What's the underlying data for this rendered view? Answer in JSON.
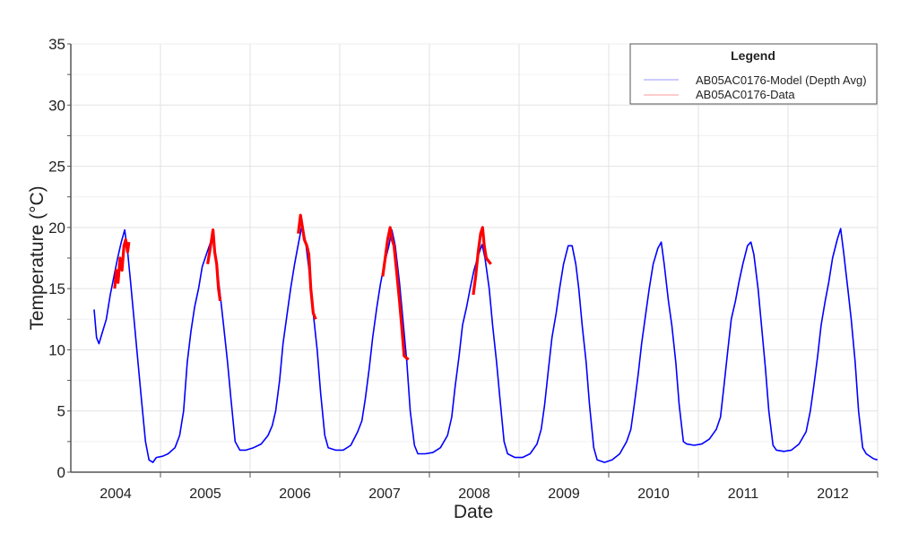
{
  "chart_data": {
    "type": "line",
    "title": "",
    "xlabel": "Date",
    "ylabel": "Temperature (°C)",
    "xlim": [
      "2004-01-01",
      "2013-01-01"
    ],
    "ylim": [
      0,
      35
    ],
    "x_tick_labels": [
      "2004",
      "2005",
      "2006",
      "2007",
      "2008",
      "2009",
      "2010",
      "2011",
      "2012"
    ],
    "y_ticks": [
      0,
      5,
      10,
      15,
      20,
      25,
      30,
      35
    ],
    "grid": true,
    "legend": {
      "title": "Legend",
      "position": "top-right"
    },
    "series": [
      {
        "name": "AB05AC0176-Model (Depth Avg)",
        "color": "#0000ff",
        "points": [
          [
            "2004-04-05",
            13.3
          ],
          [
            "2004-04-15",
            11
          ],
          [
            "2004-04-25",
            10.5
          ],
          [
            "2004-05-10",
            11.5
          ],
          [
            "2004-05-25",
            12.5
          ],
          [
            "2004-06-10",
            14.5
          ],
          [
            "2004-06-25",
            16
          ],
          [
            "2004-07-10",
            17.5
          ],
          [
            "2004-07-25",
            18.8
          ],
          [
            "2004-08-08",
            19.8
          ],
          [
            "2004-08-20",
            18
          ],
          [
            "2004-09-01",
            15.5
          ],
          [
            "2004-09-15",
            12.5
          ],
          [
            "2004-10-01",
            9
          ],
          [
            "2004-10-15",
            6
          ],
          [
            "2004-11-01",
            2.5
          ],
          [
            "2004-11-15",
            1.0
          ],
          [
            "2004-12-01",
            0.8
          ],
          [
            "2004-12-15",
            1.2
          ],
          [
            "2005-01-10",
            1.3
          ],
          [
            "2005-02-01",
            1.5
          ],
          [
            "2005-03-01",
            2.0
          ],
          [
            "2005-03-20",
            3.0
          ],
          [
            "2005-04-05",
            5
          ],
          [
            "2005-04-20",
            9
          ],
          [
            "2005-05-05",
            11.5
          ],
          [
            "2005-05-20",
            13.5
          ],
          [
            "2005-06-05",
            15
          ],
          [
            "2005-06-20",
            16.8
          ],
          [
            "2005-07-10",
            18
          ],
          [
            "2005-08-02",
            19.3
          ],
          [
            "2005-08-15",
            17.5
          ],
          [
            "2005-09-01",
            14.5
          ],
          [
            "2005-09-15",
            12
          ],
          [
            "2005-10-01",
            9
          ],
          [
            "2005-10-15",
            6
          ],
          [
            "2005-11-01",
            2.5
          ],
          [
            "2005-11-20",
            1.8
          ],
          [
            "2005-12-15",
            1.8
          ],
          [
            "2006-01-15",
            2.0
          ],
          [
            "2006-02-15",
            2.3
          ],
          [
            "2006-03-15",
            3.0
          ],
          [
            "2006-04-01",
            3.8
          ],
          [
            "2006-04-15",
            5
          ],
          [
            "2006-05-01",
            7.5
          ],
          [
            "2006-05-15",
            10.5
          ],
          [
            "2006-06-01",
            13
          ],
          [
            "2006-06-15",
            15
          ],
          [
            "2006-07-01",
            17
          ],
          [
            "2006-07-15",
            18.5
          ],
          [
            "2006-08-01",
            20.3
          ],
          [
            "2006-08-15",
            18.8
          ],
          [
            "2006-09-01",
            16
          ],
          [
            "2006-09-15",
            13
          ],
          [
            "2006-10-01",
            10
          ],
          [
            "2006-10-15",
            6.5
          ],
          [
            "2006-11-01",
            3
          ],
          [
            "2006-11-15",
            2.0
          ],
          [
            "2006-12-15",
            1.8
          ],
          [
            "2007-01-15",
            1.8
          ],
          [
            "2007-02-15",
            2.2
          ],
          [
            "2007-03-15",
            3.3
          ],
          [
            "2007-04-01",
            4.2
          ],
          [
            "2007-04-15",
            6
          ],
          [
            "2007-05-01",
            8.5
          ],
          [
            "2007-05-15",
            11
          ],
          [
            "2007-06-01",
            13.5
          ],
          [
            "2007-06-15",
            15.3
          ],
          [
            "2007-07-01",
            17
          ],
          [
            "2007-07-20",
            18.5
          ],
          [
            "2007-08-01",
            19.8
          ],
          [
            "2007-08-15",
            18.5
          ],
          [
            "2007-09-01",
            15.5
          ],
          [
            "2007-09-15",
            12.5
          ],
          [
            "2007-10-01",
            9
          ],
          [
            "2007-10-15",
            5
          ],
          [
            "2007-11-01",
            2.2
          ],
          [
            "2007-11-15",
            1.5
          ],
          [
            "2007-12-15",
            1.5
          ],
          [
            "2008-01-15",
            1.6
          ],
          [
            "2008-02-15",
            2.0
          ],
          [
            "2008-03-15",
            3.0
          ],
          [
            "2008-04-01",
            4.5
          ],
          [
            "2008-04-15",
            7
          ],
          [
            "2008-05-01",
            9.5
          ],
          [
            "2008-05-15",
            12
          ],
          [
            "2008-06-01",
            13.5
          ],
          [
            "2008-06-15",
            15
          ],
          [
            "2008-07-01",
            16.5
          ],
          [
            "2008-07-20",
            17.8
          ],
          [
            "2008-08-03",
            18.6
          ],
          [
            "2008-08-15",
            17.5
          ],
          [
            "2008-09-01",
            15
          ],
          [
            "2008-09-15",
            12
          ],
          [
            "2008-10-01",
            9
          ],
          [
            "2008-10-15",
            6
          ],
          [
            "2008-11-01",
            2.5
          ],
          [
            "2008-11-15",
            1.5
          ],
          [
            "2008-12-15",
            1.2
          ],
          [
            "2009-01-15",
            1.2
          ],
          [
            "2009-02-15",
            1.5
          ],
          [
            "2009-03-15",
            2.3
          ],
          [
            "2009-04-01",
            3.5
          ],
          [
            "2009-04-15",
            5.5
          ],
          [
            "2009-05-01",
            8.5
          ],
          [
            "2009-05-15",
            11
          ],
          [
            "2009-06-01",
            13
          ],
          [
            "2009-06-15",
            15
          ],
          [
            "2009-07-01",
            17
          ],
          [
            "2009-07-20",
            18.5
          ],
          [
            "2009-08-05",
            18.5
          ],
          [
            "2009-08-20",
            17
          ],
          [
            "2009-09-01",
            15
          ],
          [
            "2009-09-15",
            12
          ],
          [
            "2009-10-01",
            9
          ],
          [
            "2009-10-15",
            5.5
          ],
          [
            "2009-11-01",
            2
          ],
          [
            "2009-11-15",
            1.0
          ],
          [
            "2009-12-15",
            0.8
          ],
          [
            "2010-01-15",
            1.0
          ],
          [
            "2010-02-15",
            1.5
          ],
          [
            "2010-03-15",
            2.5
          ],
          [
            "2010-04-01",
            3.5
          ],
          [
            "2010-04-15",
            5.5
          ],
          [
            "2010-05-01",
            8
          ],
          [
            "2010-05-15",
            10.5
          ],
          [
            "2010-06-01",
            13
          ],
          [
            "2010-06-15",
            15
          ],
          [
            "2010-07-01",
            17
          ],
          [
            "2010-07-20",
            18.3
          ],
          [
            "2010-08-03",
            18.8
          ],
          [
            "2010-08-15",
            17
          ],
          [
            "2010-09-01",
            14
          ],
          [
            "2010-09-15",
            12
          ],
          [
            "2010-10-01",
            9
          ],
          [
            "2010-10-15",
            5.5
          ],
          [
            "2010-11-01",
            2.5
          ],
          [
            "2010-11-15",
            2.3
          ],
          [
            "2010-12-15",
            2.2
          ],
          [
            "2011-01-15",
            2.3
          ],
          [
            "2011-02-15",
            2.7
          ],
          [
            "2011-03-15",
            3.5
          ],
          [
            "2011-04-01",
            4.5
          ],
          [
            "2011-04-15",
            7
          ],
          [
            "2011-05-01",
            10
          ],
          [
            "2011-05-15",
            12.5
          ],
          [
            "2011-06-01",
            14
          ],
          [
            "2011-06-15",
            15.5
          ],
          [
            "2011-07-01",
            17
          ],
          [
            "2011-07-20",
            18.5
          ],
          [
            "2011-08-03",
            18.8
          ],
          [
            "2011-08-15",
            17.8
          ],
          [
            "2011-09-01",
            15
          ],
          [
            "2011-09-15",
            12
          ],
          [
            "2011-10-01",
            8.5
          ],
          [
            "2011-10-15",
            5
          ],
          [
            "2011-11-01",
            2.2
          ],
          [
            "2011-11-15",
            1.8
          ],
          [
            "2011-12-15",
            1.7
          ],
          [
            "2012-01-15",
            1.8
          ],
          [
            "2012-02-15",
            2.3
          ],
          [
            "2012-03-15",
            3.3
          ],
          [
            "2012-04-01",
            5
          ],
          [
            "2012-04-15",
            7
          ],
          [
            "2012-05-01",
            9.5
          ],
          [
            "2012-05-15",
            12
          ],
          [
            "2012-06-01",
            14
          ],
          [
            "2012-06-15",
            15.5
          ],
          [
            "2012-07-01",
            17.5
          ],
          [
            "2012-07-20",
            19
          ],
          [
            "2012-08-03",
            19.9
          ],
          [
            "2012-08-15",
            18
          ],
          [
            "2012-09-01",
            15
          ],
          [
            "2012-09-15",
            12.5
          ],
          [
            "2012-10-01",
            9
          ],
          [
            "2012-10-15",
            5
          ],
          [
            "2012-11-01",
            2
          ],
          [
            "2012-11-15",
            1.5
          ],
          [
            "2012-12-15",
            1.1
          ],
          [
            "2012-12-31",
            1.0
          ]
        ]
      },
      {
        "name": "AB05AC0176-Data",
        "color": "#ff0000",
        "segments": [
          [
            [
              "2004-06-28",
              15
            ],
            [
              "2004-07-05",
              16.5
            ],
            [
              "2004-07-12",
              15.5
            ],
            [
              "2004-07-20",
              17.5
            ],
            [
              "2004-07-28",
              16.5
            ],
            [
              "2004-08-05",
              18.5
            ],
            [
              "2004-08-12",
              19
            ],
            [
              "2004-08-20",
              18
            ],
            [
              "2004-08-25",
              18.8
            ]
          ],
          [
            [
              "2005-07-12",
              17
            ],
            [
              "2005-07-20",
              18
            ],
            [
              "2005-07-28",
              19
            ],
            [
              "2005-08-03",
              19.8
            ],
            [
              "2005-08-10",
              18
            ],
            [
              "2005-08-18",
              17
            ],
            [
              "2005-08-25",
              15
            ],
            [
              "2005-09-01",
              14
            ]
          ],
          [
            [
              "2006-07-16",
              19.5
            ],
            [
              "2006-07-25",
              21
            ],
            [
              "2006-08-02",
              20
            ],
            [
              "2006-08-10",
              19
            ],
            [
              "2006-08-20",
              18.5
            ],
            [
              "2006-08-28",
              17.8
            ],
            [
              "2006-09-05",
              15
            ],
            [
              "2006-09-15",
              13
            ],
            [
              "2006-09-25",
              12.5
            ]
          ],
          [
            [
              "2007-06-25",
              16
            ],
            [
              "2007-07-05",
              17.5
            ],
            [
              "2007-07-15",
              19
            ],
            [
              "2007-07-25",
              20
            ],
            [
              "2007-08-02",
              19
            ],
            [
              "2007-08-10",
              18.5
            ],
            [
              "2007-08-20",
              16.5
            ],
            [
              "2007-09-01",
              14
            ],
            [
              "2007-09-10",
              12
            ],
            [
              "2007-09-20",
              9.5
            ],
            [
              "2007-10-08",
              9.2
            ]
          ],
          [
            [
              "2008-06-28",
              14.5
            ],
            [
              "2008-07-08",
              16
            ],
            [
              "2008-07-18",
              18
            ],
            [
              "2008-07-28",
              19.5
            ],
            [
              "2008-08-05",
              20
            ],
            [
              "2008-08-12",
              18.5
            ],
            [
              "2008-08-20",
              17.5
            ],
            [
              "2008-09-08",
              17
            ]
          ]
        ]
      }
    ]
  }
}
